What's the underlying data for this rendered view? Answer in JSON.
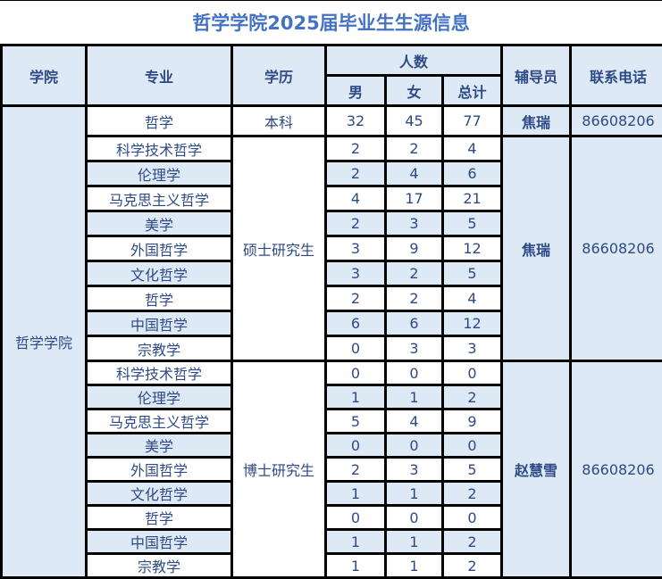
{
  "title": "哲学学院2025届毕业生生源信息",
  "headers": {
    "college": "学院",
    "major": "专业",
    "degree": "学历",
    "count": "人数",
    "male": "男",
    "female": "女",
    "total": "总计",
    "advisor": "辅导员",
    "phone": "联系电话"
  },
  "college": "哲学学院",
  "groups": [
    {
      "degree": "本科",
      "advisor": "焦瑞",
      "phone": "86608206",
      "rows": [
        {
          "major": "哲学",
          "male": "32",
          "female": "45",
          "total": "77"
        }
      ]
    },
    {
      "degree": "硕士研究生",
      "advisor": "焦瑞",
      "phone": "86608206",
      "rows": [
        {
          "major": "科学技术哲学",
          "male": "2",
          "female": "2",
          "total": "4"
        },
        {
          "major": "伦理学",
          "male": "2",
          "female": "4",
          "total": "6"
        },
        {
          "major": "马克思主义哲学",
          "male": "4",
          "female": "17",
          "total": "21"
        },
        {
          "major": "美学",
          "male": "2",
          "female": "3",
          "total": "5"
        },
        {
          "major": "外国哲学",
          "male": "3",
          "female": "9",
          "total": "12"
        },
        {
          "major": "文化哲学",
          "male": "3",
          "female": "2",
          "total": "5"
        },
        {
          "major": "哲学",
          "male": "2",
          "female": "2",
          "total": "4"
        },
        {
          "major": "中国哲学",
          "male": "6",
          "female": "6",
          "total": "12"
        },
        {
          "major": "宗教学",
          "male": "0",
          "female": "3",
          "total": "3"
        }
      ]
    },
    {
      "degree": "博士研究生",
      "advisor": "赵慧雪",
      "phone": "86608206",
      "rows": [
        {
          "major": "科学技术哲学",
          "male": "0",
          "female": "0",
          "total": "0"
        },
        {
          "major": "伦理学",
          "male": "1",
          "female": "1",
          "total": "2"
        },
        {
          "major": "马克思主义哲学",
          "male": "5",
          "female": "4",
          "total": "9"
        },
        {
          "major": "美学",
          "male": "0",
          "female": "0",
          "total": "0"
        },
        {
          "major": "外国哲学",
          "male": "2",
          "female": "3",
          "total": "5"
        },
        {
          "major": "文化哲学",
          "male": "1",
          "female": "1",
          "total": "2"
        },
        {
          "major": "哲学",
          "male": "0",
          "female": "0",
          "total": "0"
        },
        {
          "major": "中国哲学",
          "male": "1",
          "female": "1",
          "total": "2"
        },
        {
          "major": "宗教学",
          "male": "1",
          "female": "1",
          "total": "2"
        }
      ]
    }
  ]
}
